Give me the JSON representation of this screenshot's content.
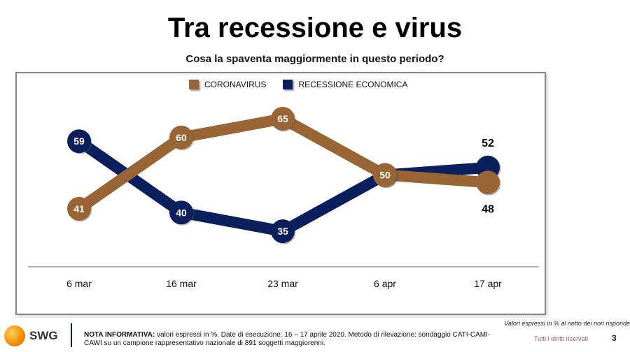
{
  "title": "Tra recessione e virus",
  "subtitle": "Cosa la spaventa maggiormente in questo periodo?",
  "chart_data": {
    "type": "line",
    "categories": [
      "6 mar",
      "16 mar",
      "23 mar",
      "6 apr",
      "17 apr"
    ],
    "series": [
      {
        "name": "CORONAVIRUS",
        "values": [
          41,
          60,
          65,
          50,
          48
        ],
        "color": "#9A6534"
      },
      {
        "name": "RECESSIONE ECONOMICA",
        "values": [
          59,
          40,
          35,
          50,
          52
        ],
        "color": "#0B1F5C"
      }
    ],
    "legend": "top-center"
  },
  "footer": {
    "logo": "SWG",
    "note_label": "NOTA INFORMATIVA:",
    "note_text": " valori espressi in %. Date di esecuzione: 16 – 17 aprile 2020. Metodo di rilevazione: sondaggio CATI-CAMI-CAWI su un campione rappresentativo nazionale di 891 soggetti maggiorenni.",
    "right_note": "Valori espressi in % al netto dei non risponde",
    "rights": "Tutti i diritti riservati",
    "page": "3"
  }
}
